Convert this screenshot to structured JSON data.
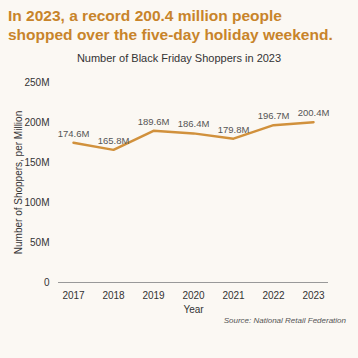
{
  "chart_data": {
    "type": "line",
    "title": "In 2023, a record 200.4 million people shopped over the five-day holiday weekend.",
    "subtitle": "Number of Black Friday Shoppers in 2023",
    "x_label": "Year",
    "y_label": "Number of Shoppers, per Million",
    "source": "Source: National Retail Federation",
    "categories": [
      "2017",
      "2018",
      "2019",
      "2020",
      "2021",
      "2022",
      "2023"
    ],
    "values": [
      174.6,
      165.8,
      189.6,
      186.4,
      179.8,
      196.7,
      200.4
    ],
    "value_labels": [
      "174.6M",
      "165.8M",
      "189.6M",
      "186.4M",
      "179.8M",
      "196.7M",
      "200.4M"
    ],
    "data_labels": true,
    "color": "#d1913c",
    "grid": false,
    "ylim": [
      0,
      250
    ],
    "yticks": [
      0,
      {
        "value": 50,
        "label": "50M"
      },
      {
        "value": 100,
        "label": "100M"
      },
      {
        "value": 150,
        "label": "150M"
      },
      {
        "value": 200,
        "label": "200M"
      },
      {
        "value": 250,
        "label": "250M"
      }
    ]
  }
}
